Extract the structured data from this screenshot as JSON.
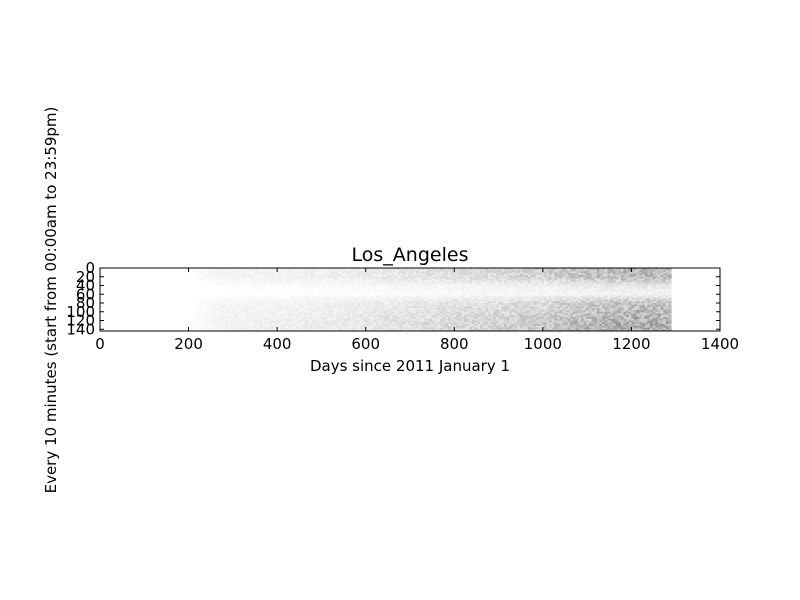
{
  "chart_data": {
    "type": "heatmap",
    "title": "Los_Angeles",
    "xlabel": "Days since 2011 January 1",
    "ylabel": "Every 10 minutes (start from 00:00am to 23:59pm)",
    "xlim": [
      0,
      1400
    ],
    "ylim": [
      144,
      0
    ],
    "x_ticks": [
      0,
      200,
      400,
      600,
      800,
      1000,
      1200,
      1400
    ],
    "y_ticks": [
      0,
      20,
      40,
      60,
      80,
      100,
      120,
      140
    ],
    "y_axis_inverted": true,
    "grid": false,
    "legend": "none",
    "colormap": "gray_r",
    "n_time_slots": 144,
    "data_extent_days": [
      0,
      1290
    ],
    "activity_by_day": [
      {
        "day": 0,
        "level": 0.0
      },
      {
        "day": 200,
        "level": 0.01
      },
      {
        "day": 280,
        "level": 0.05
      },
      {
        "day": 400,
        "level": 0.06
      },
      {
        "day": 550,
        "level": 0.08
      },
      {
        "day": 700,
        "level": 0.12
      },
      {
        "day": 850,
        "level": 0.16
      },
      {
        "day": 1000,
        "level": 0.2
      },
      {
        "day": 1050,
        "level": 0.24
      },
      {
        "day": 1150,
        "level": 0.3
      },
      {
        "day": 1250,
        "level": 0.32
      },
      {
        "day": 1290,
        "level": 0.3
      }
    ],
    "activity_by_slot": [
      {
        "slot": 0,
        "level": 0.9
      },
      {
        "slot": 20,
        "level": 0.85
      },
      {
        "slot": 40,
        "level": 0.3
      },
      {
        "slot": 60,
        "level": 0.15
      },
      {
        "slot": 80,
        "level": 0.75
      },
      {
        "slot": 100,
        "level": 0.85
      },
      {
        "slot": 120,
        "level": 1.0
      },
      {
        "slot": 144,
        "level": 1.0
      }
    ]
  }
}
